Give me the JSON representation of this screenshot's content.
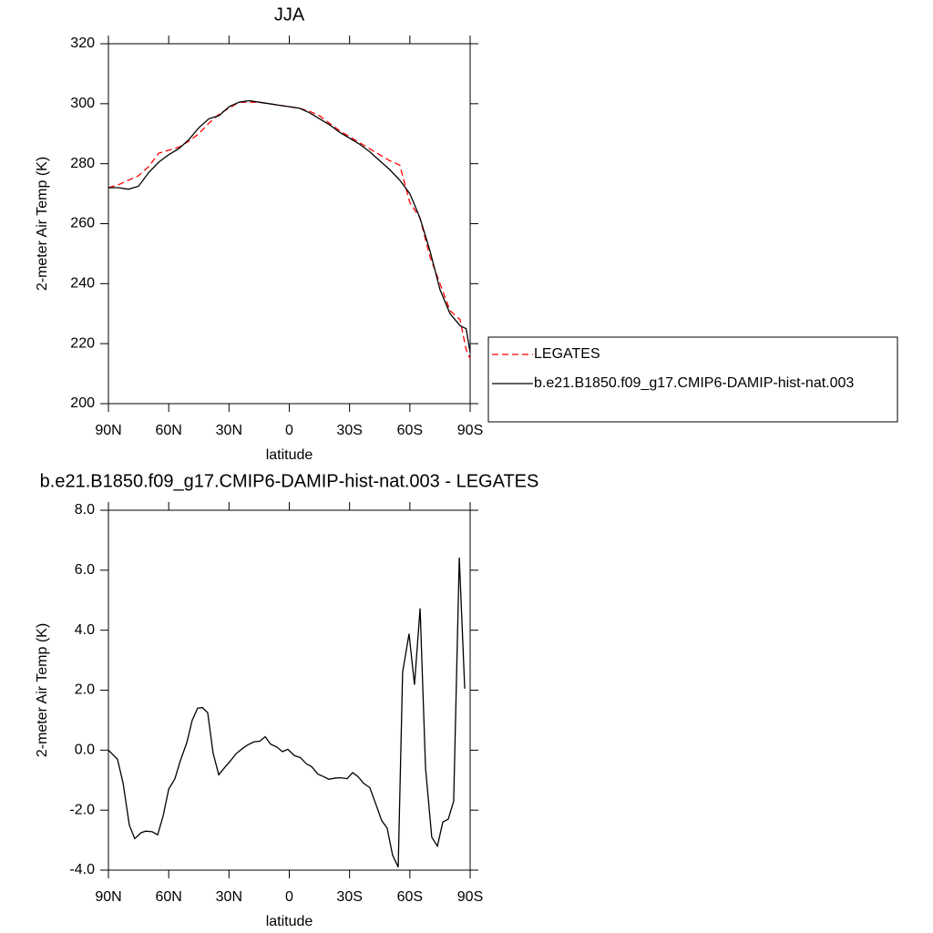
{
  "chart_data": [
    {
      "type": "line",
      "title": "JJA",
      "x_label": "latitude",
      "y_label": "2-meter Air Temp (K)",
      "x": [
        90,
        85,
        80,
        75,
        70,
        65,
        60,
        55,
        50,
        45,
        40,
        35,
        30,
        25,
        20,
        15,
        10,
        5,
        0,
        -5,
        -10,
        -15,
        -20,
        -25,
        -30,
        -35,
        -40,
        -45,
        -50,
        -55,
        -60,
        -65,
        -70,
        -75,
        -80,
        -85,
        -88,
        -90
      ],
      "series": [
        {
          "name": "LEGATES",
          "color": "#ff0000",
          "dash": "dashed",
          "values": [
            272,
            273,
            274.5,
            276,
            279,
            283.5,
            284.5,
            285.5,
            287.5,
            290,
            293.5,
            296.5,
            298.5,
            300.5,
            300.5,
            300.5,
            300,
            299.5,
            299,
            298.5,
            297.5,
            296,
            293.5,
            291,
            289,
            287,
            285,
            283,
            281,
            279.5,
            267,
            262,
            249,
            240,
            231,
            228,
            218,
            215
          ]
        },
        {
          "name": "b.e21.B1850.f09_g17.CMIP6-DAMIP-hist-nat.003",
          "color": "#000000",
          "dash": "solid",
          "values": [
            272,
            272,
            271.5,
            272.5,
            277,
            280.5,
            283,
            285,
            288,
            292,
            295,
            296,
            299,
            300.5,
            301,
            300.5,
            300,
            299.5,
            299,
            298.5,
            297,
            295,
            293,
            290.5,
            288.5,
            286.5,
            284,
            281,
            278,
            274.5,
            270,
            262,
            251,
            238,
            230,
            226,
            225,
            217
          ]
        }
      ],
      "xlim": [
        90,
        -90
      ],
      "ylim": [
        200,
        320
      ],
      "xticks": [
        {
          "value": 90,
          "label": "90N"
        },
        {
          "value": 60,
          "label": "60N"
        },
        {
          "value": 30,
          "label": "30N"
        },
        0,
        {
          "value": -30,
          "label": "30S"
        },
        {
          "value": -60,
          "label": "60S"
        },
        {
          "value": -90,
          "label": "90S"
        }
      ],
      "yticks": [
        200,
        220,
        240,
        260,
        280,
        300,
        320
      ],
      "legend": "outside-right"
    },
    {
      "type": "line",
      "title": "b.e21.B1850.f09_g17.CMIP6-DAMIP-hist-nat.003 - LEGATES",
      "x_label": "latitude",
      "y_label": "2-meter Air Temp (K)",
      "x": [
        90,
        85.5,
        82.7,
        79.6,
        76.9,
        73.7,
        71.4,
        68.2,
        65.5,
        62.8,
        60,
        56.9,
        54.2,
        51,
        48.3,
        45.6,
        43.3,
        40.6,
        37.9,
        35.1,
        32.4,
        29.2,
        26.5,
        23.4,
        20.6,
        17.5,
        14.7,
        12,
        9.3,
        6.1,
        3.4,
        0.7,
        -2.5,
        -5.6,
        -8.4,
        -11.1,
        -14.3,
        -17,
        -19.7,
        -22.9,
        -25.6,
        -28.8,
        -31.5,
        -34.2,
        -36.9,
        -40.1,
        -42.8,
        -46,
        -48.7,
        -51.4,
        -54.2,
        -56.4,
        -59.6,
        -62.3,
        -65.1,
        -67.8,
        -70.9,
        -73.7,
        -76.4,
        -79.1,
        -81.8,
        -84.6,
        -87.3
      ],
      "values": [
        0,
        -0.3,
        -1.1,
        -2.5,
        -2.95,
        -2.75,
        -2.7,
        -2.72,
        -2.82,
        -2.2,
        -1.3,
        -0.95,
        -0.35,
        0.25,
        1.0,
        1.4,
        1.42,
        1.25,
        -0.1,
        -0.82,
        -0.6,
        -0.35,
        -0.12,
        0.05,
        0.18,
        0.28,
        0.3,
        0.45,
        0.2,
        0.1,
        -0.05,
        0.03,
        -0.18,
        -0.25,
        -0.45,
        -0.55,
        -0.8,
        -0.88,
        -0.97,
        -0.93,
        -0.92,
        -0.95,
        -0.75,
        -0.88,
        -1.1,
        -1.25,
        -1.75,
        -2.35,
        -2.6,
        -3.5,
        -3.9,
        2.6,
        3.88,
        2.18,
        4.73,
        -0.6,
        -2.9,
        -3.2,
        -2.4,
        -2.3,
        -1.7,
        6.42,
        2.05
      ],
      "color": "#000000",
      "xlim": [
        90,
        -90
      ],
      "ylim": [
        -4,
        8
      ],
      "xticks": [
        {
          "value": 90,
          "label": "90N"
        },
        {
          "value": 60,
          "label": "60N"
        },
        {
          "value": 30,
          "label": "30N"
        },
        0,
        {
          "value": -30,
          "label": "30S"
        },
        {
          "value": -60,
          "label": "60S"
        },
        {
          "value": -90,
          "label": "90S"
        }
      ],
      "yticks": [
        {
          "value": -4,
          "label": "-4.0"
        },
        {
          "value": -2,
          "label": "-2.0"
        },
        {
          "value": 0,
          "label": "0.0"
        },
        {
          "value": 2,
          "label": "2.0"
        },
        {
          "value": 4,
          "label": "4.0"
        },
        {
          "value": 6,
          "label": "6.0"
        },
        {
          "value": 8,
          "label": "8.0"
        }
      ]
    }
  ]
}
